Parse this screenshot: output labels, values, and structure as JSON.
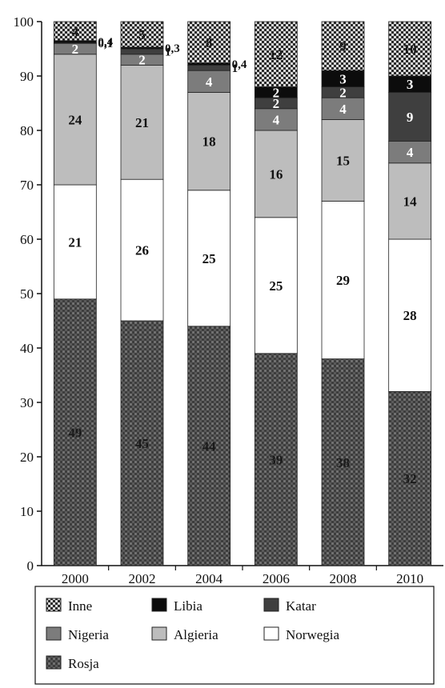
{
  "chart_data": {
    "type": "bar",
    "stacked": true,
    "title": "",
    "xlabel": "",
    "ylabel": "",
    "ylim": [
      0,
      100
    ],
    "yticks": [
      0,
      10,
      20,
      30,
      40,
      50,
      60,
      70,
      80,
      90,
      100
    ],
    "categories": [
      "2000",
      "2002",
      "2004",
      "2006",
      "2008",
      "2010"
    ],
    "series": [
      {
        "name": "Rosja",
        "values": [
          49,
          45,
          44,
          39,
          38,
          32
        ],
        "labels": [
          "49",
          "45",
          "44",
          "39",
          "38",
          "32"
        ],
        "fill": "rosja",
        "text_color": "#1a1a1a"
      },
      {
        "name": "Norwegia",
        "values": [
          21,
          26,
          25,
          25,
          29,
          28
        ],
        "labels": [
          "21",
          "26",
          "25",
          "25",
          "29",
          "28"
        ],
        "fill": "norwegia",
        "text_color": "#111111"
      },
      {
        "name": "Algieria",
        "values": [
          24,
          21,
          18,
          16,
          15,
          14
        ],
        "labels": [
          "24",
          "21",
          "18",
          "16",
          "15",
          "14"
        ],
        "fill": "algieria",
        "text_color": "#111111"
      },
      {
        "name": "Nigeria",
        "values": [
          2,
          2,
          4,
          4,
          4,
          4
        ],
        "labels": [
          "2",
          "2",
          "4",
          "4",
          "4",
          "4"
        ],
        "fill": "nigeria",
        "text_color": "#ffffff"
      },
      {
        "name": "Katar",
        "values": [
          0.1,
          1,
          1,
          2,
          2,
          9
        ],
        "labels": [
          "0,1",
          "1",
          "1",
          "2",
          "2",
          "9"
        ],
        "fill": "katar",
        "text_color": "#ffffff"
      },
      {
        "name": "Libia",
        "values": [
          0.4,
          0.3,
          0.4,
          2,
          3,
          3
        ],
        "labels": [
          "0,4",
          "0,3",
          "0,4",
          "2",
          "3",
          "3"
        ],
        "fill": "libia",
        "text_color": "#ffffff"
      },
      {
        "name": "Inne",
        "values": [
          3.5,
          4.7,
          7.6,
          12,
          9,
          10
        ],
        "labels": [
          "4",
          "5",
          "8",
          "12",
          "9",
          "10"
        ],
        "fill": "inne",
        "text_color": "#1a1a1a"
      }
    ],
    "legend": {
      "placement": "bottom",
      "items": [
        "Inne",
        "Libia",
        "Katar",
        "Nigeria",
        "Algieria",
        "Norwegia",
        "Rosja"
      ]
    },
    "grid": false
  }
}
